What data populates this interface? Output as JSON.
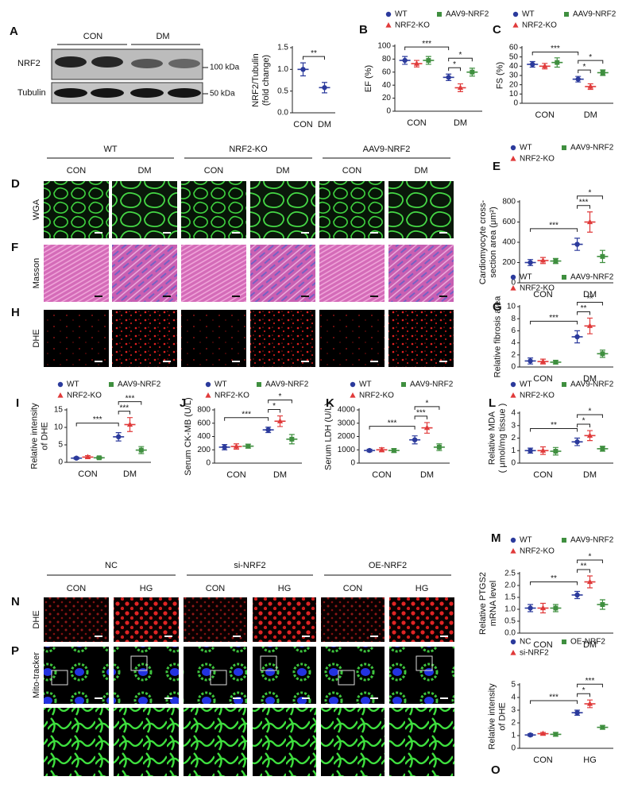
{
  "western_blot": {
    "panel": "A",
    "groups": [
      "CON",
      "DM"
    ],
    "rows": [
      "NRF2",
      "Tubulin"
    ],
    "markers": [
      "100 kDa",
      "50 kDa"
    ]
  },
  "tissue_images": {
    "groups": [
      "WT",
      "NRF2-KO",
      "AAV9-NRF2"
    ],
    "conditions": [
      "CON",
      "DM"
    ],
    "rows": [
      {
        "panel": "D",
        "label": "WGA"
      },
      {
        "panel": "F",
        "label": "Masson"
      },
      {
        "panel": "H",
        "label": "DHE"
      }
    ]
  },
  "cell_images": {
    "groups": [
      "NC",
      "si-NRF2",
      "OE-NRF2"
    ],
    "conditions": [
      "CON",
      "HG"
    ],
    "rows": [
      {
        "panel": "N",
        "label": "DHE"
      },
      {
        "panel": "P",
        "label": "Mito-tracker"
      }
    ]
  },
  "chart_data": [
    {
      "type": "dot",
      "panel": "A",
      "y_label": [
        "NRF2/Tubulin",
        "(fold change)"
      ],
      "categories": [
        "CON",
        "DM"
      ],
      "series": [
        {
          "color": "#2b3a9c",
          "marker": "circle",
          "values": [
            1.0,
            0.58
          ],
          "errors": [
            0.15,
            0.12
          ]
        }
      ],
      "ylim": [
        0,
        1.5
      ],
      "yticks": [
        {
          "value": 0,
          "label": "0.0"
        },
        0.5,
        {
          "value": 1,
          "label": "1.0"
        },
        1.5
      ],
      "annotations": [
        "**"
      ]
    },
    {
      "type": "dot",
      "panel": "B",
      "y_label": [
        "EF (%)"
      ],
      "categories": [
        "CON",
        "DM"
      ],
      "series": [
        {
          "name": "WT",
          "color": "#2b3a9c",
          "marker": "circle",
          "values": [
            78,
            52
          ],
          "errors": [
            6,
            5
          ]
        },
        {
          "name": "NRF2-KO",
          "color": "#e03a3a",
          "marker": "triangle",
          "values": [
            73,
            36
          ],
          "errors": [
            5,
            6
          ]
        },
        {
          "name": "AAV9-NRF2",
          "color": "#3f8f3f",
          "marker": "square",
          "values": [
            78,
            60
          ],
          "errors": [
            6,
            6
          ]
        }
      ],
      "ylim": [
        0,
        100
      ],
      "yticks": [
        0,
        20,
        40,
        60,
        80,
        100
      ],
      "annotations": [
        "***",
        "*",
        "*"
      ]
    },
    {
      "type": "dot",
      "panel": "C",
      "y_label": [
        "FS (%)"
      ],
      "categories": [
        "CON",
        "DM"
      ],
      "series": [
        {
          "name": "WT",
          "color": "#2b3a9c",
          "marker": "circle",
          "values": [
            42,
            26
          ],
          "errors": [
            3,
            3
          ]
        },
        {
          "name": "NRF2-KO",
          "color": "#e03a3a",
          "marker": "triangle",
          "values": [
            40,
            18
          ],
          "errors": [
            3,
            3
          ]
        },
        {
          "name": "AAV9-NRF2",
          "color": "#3f8f3f",
          "marker": "square",
          "values": [
            44,
            33
          ],
          "errors": [
            5,
            3
          ]
        }
      ],
      "ylim": [
        0,
        60
      ],
      "yticks": [
        0,
        10,
        20,
        30,
        40,
        50,
        60
      ],
      "annotations": [
        "***",
        "*",
        "*"
      ]
    },
    {
      "type": "dot",
      "panel": "E",
      "y_label": [
        "Cardiomyocyte cross-",
        "section area (μm²)"
      ],
      "categories": [
        "CON",
        "DM"
      ],
      "series": [
        {
          "name": "WT",
          "color": "#2b3a9c",
          "marker": "circle",
          "values": [
            200,
            380
          ],
          "errors": [
            30,
            60
          ]
        },
        {
          "name": "NRF2-KO",
          "color": "#e03a3a",
          "marker": "triangle",
          "values": [
            220,
            600
          ],
          "errors": [
            30,
            100
          ]
        },
        {
          "name": "AAV9-NRF2",
          "color": "#3f8f3f",
          "marker": "square",
          "values": [
            215,
            260
          ],
          "errors": [
            25,
            60
          ]
        }
      ],
      "ylim": [
        0,
        800
      ],
      "yticks": [
        0,
        200,
        400,
        600,
        800
      ],
      "annotations": [
        "***",
        "***",
        "*"
      ]
    },
    {
      "type": "dot",
      "panel": "G",
      "y_label": [
        "Relative fibrosis area"
      ],
      "categories": [
        "CON",
        "DM"
      ],
      "series": [
        {
          "name": "WT",
          "color": "#2b3a9c",
          "marker": "circle",
          "values": [
            1.0,
            5.0
          ],
          "errors": [
            0.5,
            1.0
          ]
        },
        {
          "name": "NRF2-KO",
          "color": "#e03a3a",
          "marker": "triangle",
          "values": [
            0.9,
            6.8
          ],
          "errors": [
            0.4,
            1.3
          ]
        },
        {
          "name": "AAV9-NRF2",
          "color": "#3f8f3f",
          "marker": "square",
          "values": [
            0.8,
            2.2
          ],
          "errors": [
            0.3,
            0.6
          ]
        }
      ],
      "ylim": [
        0,
        10
      ],
      "yticks": [
        0,
        2,
        4,
        6,
        8,
        10
      ],
      "annotations": [
        "***",
        "**",
        "**"
      ]
    },
    {
      "type": "dot",
      "panel": "I",
      "y_label": [
        "Relative intensity",
        "of DHE"
      ],
      "categories": [
        "CON",
        "DM"
      ],
      "series": [
        {
          "name": "WT",
          "color": "#2b3a9c",
          "marker": "circle",
          "values": [
            1.2,
            7.3
          ],
          "errors": [
            0.3,
            1.2
          ]
        },
        {
          "name": "NRF2-KO",
          "color": "#e03a3a",
          "marker": "triangle",
          "values": [
            1.5,
            10.8
          ],
          "errors": [
            0.4,
            2.0
          ]
        },
        {
          "name": "AAV9-NRF2",
          "color": "#3f8f3f",
          "marker": "square",
          "values": [
            1.3,
            3.5
          ],
          "errors": [
            0.3,
            1.0
          ]
        }
      ],
      "ylim": [
        0,
        15
      ],
      "yticks": [
        0,
        5,
        10,
        15
      ],
      "annotations": [
        "***",
        "***",
        "***"
      ]
    },
    {
      "type": "dot",
      "panel": "J",
      "y_label": [
        "Serum CK-MB (U/L)"
      ],
      "categories": [
        "CON",
        "DM"
      ],
      "series": [
        {
          "name": "WT",
          "color": "#2b3a9c",
          "marker": "circle",
          "values": [
            240,
            500
          ],
          "errors": [
            40,
            40
          ]
        },
        {
          "name": "NRF2-KO",
          "color": "#e03a3a",
          "marker": "triangle",
          "values": [
            250,
            630
          ],
          "errors": [
            40,
            80
          ]
        },
        {
          "name": "AAV9-NRF2",
          "color": "#3f8f3f",
          "marker": "square",
          "values": [
            255,
            360
          ],
          "errors": [
            30,
            70
          ]
        }
      ],
      "ylim": [
        0,
        800
      ],
      "yticks": [
        0,
        200,
        400,
        600,
        800
      ],
      "annotations": [
        "***",
        "*",
        "*"
      ]
    },
    {
      "type": "dot",
      "panel": "K",
      "y_label": [
        "Serum LDH (U/L)"
      ],
      "categories": [
        "CON",
        "DM"
      ],
      "series": [
        {
          "name": "WT",
          "color": "#2b3a9c",
          "marker": "circle",
          "values": [
            950,
            1750
          ],
          "errors": [
            100,
            300
          ]
        },
        {
          "name": "NRF2-KO",
          "color": "#e03a3a",
          "marker": "triangle",
          "values": [
            1000,
            2650
          ],
          "errors": [
            150,
            400
          ]
        },
        {
          "name": "AAV9-NRF2",
          "color": "#3f8f3f",
          "marker": "square",
          "values": [
            950,
            1200
          ],
          "errors": [
            150,
            250
          ]
        }
      ],
      "ylim": [
        0,
        4000
      ],
      "yticks": [
        0,
        1000,
        2000,
        3000,
        4000
      ],
      "annotations": [
        "***",
        "***",
        "*"
      ]
    },
    {
      "type": "dot",
      "panel": "L",
      "y_label": [
        "Relative MDA",
        "( μmol/mg tissue )"
      ],
      "categories": [
        "CON",
        "DM"
      ],
      "series": [
        {
          "name": "WT",
          "color": "#2b3a9c",
          "marker": "circle",
          "values": [
            1.0,
            1.7
          ],
          "errors": [
            0.2,
            0.3
          ]
        },
        {
          "name": "NRF2-KO",
          "color": "#e03a3a",
          "marker": "triangle",
          "values": [
            1.0,
            2.2
          ],
          "errors": [
            0.3,
            0.4
          ]
        },
        {
          "name": "AAV9-NRF2",
          "color": "#3f8f3f",
          "marker": "square",
          "values": [
            0.95,
            1.15
          ],
          "errors": [
            0.3,
            0.2
          ]
        }
      ],
      "ylim": [
        0,
        4
      ],
      "yticks": [
        0,
        1,
        2,
        3,
        4
      ],
      "annotations": [
        "**",
        "*",
        "*"
      ]
    },
    {
      "type": "dot",
      "panel": "M",
      "y_label": [
        "Relative PTGS2",
        "mRNA level"
      ],
      "categories": [
        "CON",
        "DM"
      ],
      "series": [
        {
          "name": "WT",
          "color": "#2b3a9c",
          "marker": "circle",
          "values": [
            1.05,
            1.6
          ],
          "errors": [
            0.15,
            0.15
          ]
        },
        {
          "name": "NRF2-KO",
          "color": "#e03a3a",
          "marker": "triangle",
          "values": [
            1.05,
            2.15
          ],
          "errors": [
            0.2,
            0.25
          ]
        },
        {
          "name": "AAV9-NRF2",
          "color": "#3f8f3f",
          "marker": "square",
          "values": [
            1.05,
            1.2
          ],
          "errors": [
            0.15,
            0.2
          ]
        }
      ],
      "ylim": [
        0,
        2.5
      ],
      "yticks": [
        {
          "value": 0,
          "label": "0.0"
        },
        0.5,
        {
          "value": 1,
          "label": "1.0"
        },
        1.5,
        {
          "value": 2,
          "label": "2.0"
        },
        2.5
      ],
      "annotations": [
        "**",
        "**",
        "*"
      ]
    },
    {
      "type": "dot",
      "panel": "O",
      "y_label": [
        "Relative intensity",
        "of DHE"
      ],
      "categories": [
        "CON",
        "HG"
      ],
      "series": [
        {
          "name": "NC",
          "color": "#2b3a9c",
          "marker": "circle",
          "values": [
            1.05,
            2.8
          ],
          "errors": [
            0.1,
            0.2
          ]
        },
        {
          "name": "si-NRF2",
          "color": "#e03a3a",
          "marker": "triangle",
          "values": [
            1.15,
            3.5
          ],
          "errors": [
            0.1,
            0.3
          ]
        },
        {
          "name": "OE-NRF2",
          "color": "#3f8f3f",
          "marker": "square",
          "values": [
            1.1,
            1.65
          ],
          "errors": [
            0.15,
            0.15
          ]
        }
      ],
      "ylim": [
        0,
        5
      ],
      "yticks": [
        0,
        1,
        2,
        3,
        4,
        5
      ],
      "annotations": [
        "***",
        "*",
        "***"
      ]
    }
  ]
}
